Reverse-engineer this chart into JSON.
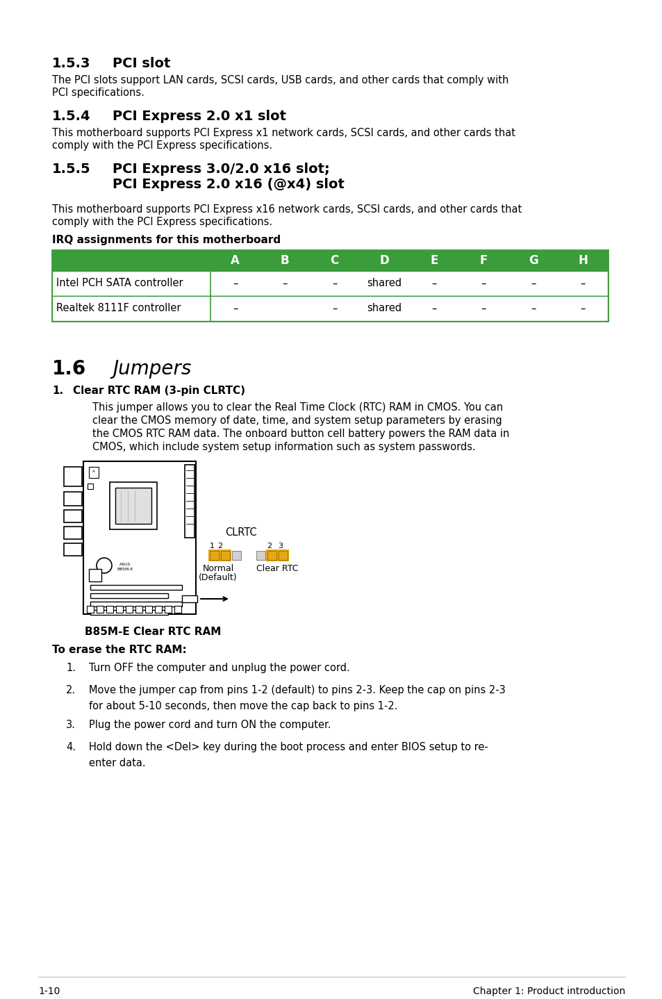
{
  "bg_color": "#ffffff",
  "table_header_color": "#3a9c3a",
  "table_border_color": "#3a9c3a",
  "table_rows": [
    [
      "Intel PCH SATA controller",
      "–",
      "–",
      "–",
      "shared",
      "–",
      "–",
      "–",
      "–"
    ],
    [
      "Realtek 8111F controller",
      "–",
      "",
      "–",
      "shared",
      "–",
      "–",
      "–",
      "–"
    ]
  ],
  "footer_left": "1-10",
  "footer_right": "Chapter 1: Product introduction",
  "jumper_color": "#e6a817",
  "jumper_open_color": "#d0d0d0"
}
